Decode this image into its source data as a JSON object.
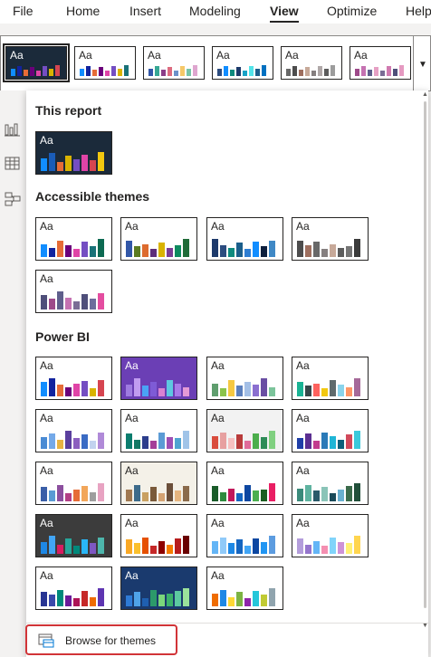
{
  "menubar": {
    "tabs": [
      {
        "label": "File",
        "active": false
      },
      {
        "label": "Home",
        "active": false
      },
      {
        "label": "Insert",
        "active": false
      },
      {
        "label": "Modeling",
        "active": false
      },
      {
        "label": "View",
        "active": true
      },
      {
        "label": "Optimize",
        "active": false
      },
      {
        "label": "Help",
        "active": false
      }
    ]
  },
  "thumb_text": "Aa",
  "ribbon_gallery": {
    "icon": "chevron-down-icon",
    "themes": [
      {
        "bg": "#1b2a3a",
        "text": "#ffffff",
        "selected": true,
        "bars": [
          "#118dff",
          "#12239e",
          "#e66c37",
          "#6b007b",
          "#e044a7",
          "#744ec2",
          "#d9b300",
          "#d64550"
        ]
      },
      {
        "bg": "#ffffff",
        "text": "#252423",
        "bars": [
          "#118dff",
          "#12239e",
          "#e66c37",
          "#6b007b",
          "#e044a7",
          "#744ec2",
          "#d9b300",
          "#197278"
        ]
      },
      {
        "bg": "#ffffff",
        "text": "#252423",
        "bars": [
          "#3257a8",
          "#37a794",
          "#8b3d88",
          "#dd6b7f",
          "#6b91c9",
          "#f5c869",
          "#77c4a8",
          "#dea6cf"
        ]
      },
      {
        "bg": "#ffffff",
        "text": "#252423",
        "bars": [
          "#2c4c7f",
          "#118dff",
          "#0e8a7e",
          "#1d3a6b",
          "#16a2c6",
          "#52e4e9",
          "#1b5e8b",
          "#0070c0"
        ]
      },
      {
        "bg": "#ffffff",
        "text": "#252423",
        "bars": [
          "#686868",
          "#4d4d4d",
          "#9e6f5f",
          "#c7a999",
          "#857f7f",
          "#b0a8a8",
          "#5c5c5c",
          "#9c9c9c"
        ]
      },
      {
        "bg": "#ffffff",
        "text": "#252423",
        "bars": [
          "#9e4a8a",
          "#c572b2",
          "#5f5f8c",
          "#e6a0c4",
          "#7a6d95",
          "#d07ab0",
          "#4f4f7a",
          "#e59ac1"
        ]
      }
    ]
  },
  "side_rail": {
    "icons": [
      "bar-chart-icon",
      "table-icon",
      "model-icon"
    ]
  },
  "panel": {
    "sections": [
      {
        "title": "This report",
        "themes": [
          {
            "bg": "#1b2a3a",
            "text": "#ffffff",
            "bars": [
              "#118dff",
              "#1a5cb8",
              "#e66c37",
              "#d9b300",
              "#744ec2",
              "#e044a7",
              "#d64550",
              "#f2c80f"
            ],
            "heights": [
              0.55,
              0.75,
              0.4,
              0.65,
              0.5,
              0.7,
              0.45,
              0.8
            ]
          }
        ]
      },
      {
        "title": "Accessible themes",
        "themes": [
          {
            "bg": "#ffffff",
            "text": "#252423",
            "bars": [
              "#118dff",
              "#12239e",
              "#e66c37",
              "#6b007b",
              "#e044a7",
              "#744ec2",
              "#197278",
              "#0d6a52"
            ],
            "heights": [
              0.55,
              0.4,
              0.7,
              0.5,
              0.35,
              0.65,
              0.45,
              0.75
            ]
          },
          {
            "bg": "#ffffff",
            "text": "#252423",
            "bars": [
              "#3257a8",
              "#5b7b22",
              "#dd6b2e",
              "#5e2e7a",
              "#d9b300",
              "#7a3d94",
              "#0e8a5f",
              "#1f6b38"
            ],
            "heights": [
              0.7,
              0.45,
              0.55,
              0.35,
              0.6,
              0.4,
              0.5,
              0.75
            ]
          },
          {
            "bg": "#ffffff",
            "text": "#252423",
            "bars": [
              "#1d3a6b",
              "#2c4c7f",
              "#0e8a7e",
              "#1b5e8b",
              "#2d7dd2",
              "#118dff",
              "#0d1f3d",
              "#3f88c5"
            ],
            "heights": [
              0.75,
              0.5,
              0.4,
              0.6,
              0.35,
              0.65,
              0.45,
              0.7
            ]
          },
          {
            "bg": "#ffffff",
            "text": "#252423",
            "bars": [
              "#4d4d4d",
              "#9e6f5f",
              "#686868",
              "#857f7f",
              "#c7a999",
              "#5c5c5c",
              "#757575",
              "#3b3b3b"
            ],
            "heights": [
              0.7,
              0.5,
              0.65,
              0.35,
              0.55,
              0.4,
              0.45,
              0.75
            ]
          },
          {
            "bg": "#ffffff",
            "text": "#252423",
            "bars": [
              "#4f4f7a",
              "#9e4a8a",
              "#5f5f8c",
              "#c572b2",
              "#7a6d95",
              "#4f4f7a",
              "#6d6d9c",
              "#e44da0"
            ],
            "heights": [
              0.6,
              0.45,
              0.75,
              0.5,
              0.35,
              0.65,
              0.45,
              0.7
            ]
          }
        ]
      },
      {
        "title": "Power BI",
        "themes": [
          {
            "bg": "#ffffff",
            "text": "#252423",
            "bars": [
              "#118dff",
              "#12239e",
              "#e66c37",
              "#6b007b",
              "#e044a7",
              "#744ec2",
              "#d9b300",
              "#d64550"
            ],
            "heights": [
              0.6,
              0.75,
              0.5,
              0.4,
              0.55,
              0.65,
              0.35,
              0.7
            ]
          },
          {
            "bg": "#6b3fb5",
            "text": "#ffffff",
            "bars": [
              "#9f7be0",
              "#c19cf0",
              "#4aa3f5",
              "#7e5bd6",
              "#d982d1",
              "#5ec7e0",
              "#a879e8",
              "#e49ad6"
            ],
            "heights": [
              0.5,
              0.75,
              0.45,
              0.6,
              0.35,
              0.7,
              0.55,
              0.4
            ]
          },
          {
            "bg": "#ffffff",
            "text": "#252423",
            "bars": [
              "#5f9e6e",
              "#8bc34a",
              "#f5c842",
              "#5b7fbd",
              "#a3bfe6",
              "#8a6fd0",
              "#6a4fa3",
              "#7cc49b"
            ],
            "heights": [
              0.55,
              0.35,
              0.7,
              0.45,
              0.6,
              0.5,
              0.75,
              0.4
            ]
          },
          {
            "bg": "#ffffff",
            "text": "#252423",
            "bars": [
              "#1ab394",
              "#374649",
              "#fd625e",
              "#f2c80f",
              "#5f6b6d",
              "#8ad4eb",
              "#fe9666",
              "#a66999"
            ],
            "heights": [
              0.6,
              0.45,
              0.55,
              0.35,
              0.7,
              0.5,
              0.4,
              0.75
            ]
          },
          {
            "bg": "#ffffff",
            "text": "#252423",
            "bars": [
              "#4a8bd4",
              "#74a9e8",
              "#e8b342",
              "#5a3f9e",
              "#8b5fbf",
              "#3a6bc4",
              "#c2d3ef",
              "#b08ad8"
            ],
            "heights": [
              0.5,
              0.65,
              0.4,
              0.75,
              0.45,
              0.6,
              0.35,
              0.7
            ]
          },
          {
            "bg": "#ffffff",
            "text": "#252423",
            "bars": [
              "#0b7d6e",
              "#117864",
              "#2c3e8c",
              "#a53e99",
              "#5b9bd5",
              "#9e4fb4",
              "#4fa3d1",
              "#a0c4e8"
            ],
            "heights": [
              0.65,
              0.4,
              0.55,
              0.35,
              0.7,
              0.5,
              0.45,
              0.75
            ]
          },
          {
            "bg": "#f2f2f2",
            "text": "#252423",
            "bars": [
              "#d94c3d",
              "#e7a0a0",
              "#f7c1c1",
              "#b83b3b",
              "#e06b9a",
              "#4cae4c",
              "#2e8b57",
              "#80d080"
            ],
            "heights": [
              0.55,
              0.7,
              0.45,
              0.6,
              0.35,
              0.65,
              0.5,
              0.75
            ]
          },
          {
            "bg": "#ffffff",
            "text": "#252423",
            "bars": [
              "#1f3fa8",
              "#5b2f91",
              "#c23c8e",
              "#2a7ab8",
              "#1fb5d6",
              "#0d5f7a",
              "#d1495b",
              "#3bc9db"
            ],
            "heights": [
              0.45,
              0.65,
              0.35,
              0.7,
              0.55,
              0.4,
              0.6,
              0.75
            ]
          },
          {
            "bg": "#ffffff",
            "text": "#252423",
            "bars": [
              "#3b5fa8",
              "#5a9bd4",
              "#8c4f9e",
              "#b33f85",
              "#e66c37",
              "#f2a65a",
              "#9e9e9e",
              "#e8a3c2"
            ],
            "heights": [
              0.6,
              0.45,
              0.7,
              0.35,
              0.5,
              0.65,
              0.4,
              0.75
            ]
          },
          {
            "bg": "#f4f1e8",
            "text": "#252423",
            "bars": [
              "#a07850",
              "#3d6b8a",
              "#c9a060",
              "#7a5a3a",
              "#d4a373",
              "#6b4f3a",
              "#e6b57f",
              "#8a6a4a"
            ],
            "heights": [
              0.5,
              0.7,
              0.4,
              0.6,
              0.35,
              0.75,
              0.45,
              0.65
            ]
          },
          {
            "bg": "#ffffff",
            "text": "#252423",
            "bars": [
              "#1a5c2a",
              "#2e8b3e",
              "#c2185b",
              "#1565c0",
              "#0d47a1",
              "#4caf50",
              "#1b5e20",
              "#e91e63"
            ],
            "heights": [
              0.65,
              0.4,
              0.55,
              0.35,
              0.7,
              0.45,
              0.5,
              0.75
            ]
          },
          {
            "bg": "#ffffff",
            "text": "#252423",
            "bars": [
              "#3a8a7a",
              "#5fb3a0",
              "#2a5a6a",
              "#8ac4b8",
              "#1a4a5a",
              "#6ab0d0",
              "#3b6b4b",
              "#214f3a"
            ],
            "heights": [
              0.55,
              0.7,
              0.45,
              0.6,
              0.35,
              0.5,
              0.65,
              0.75
            ]
          },
          {
            "bg": "#3c3c3c",
            "text": "#ffffff",
            "bars": [
              "#1e88e5",
              "#42a5f5",
              "#d81b60",
              "#26a69a",
              "#00897b",
              "#29b6f6",
              "#7e57c2",
              "#4db6ac"
            ],
            "heights": [
              0.5,
              0.75,
              0.4,
              0.65,
              0.35,
              0.6,
              0.45,
              0.7
            ]
          },
          {
            "bg": "#ffffff",
            "text": "#252423",
            "bars": [
              "#f9a825",
              "#fbc02d",
              "#e65100",
              "#c62828",
              "#8e0000",
              "#f57c00",
              "#b71c1c",
              "#6a0000"
            ],
            "heights": [
              0.6,
              0.45,
              0.7,
              0.35,
              0.55,
              0.4,
              0.65,
              0.75
            ]
          },
          {
            "bg": "#ffffff",
            "text": "#252423",
            "bars": [
              "#64b5f6",
              "#90caf9",
              "#1e88e5",
              "#1565c0",
              "#42a5f5",
              "#0d47a1",
              "#2196f3",
              "#5c9ce0"
            ],
            "heights": [
              0.55,
              0.7,
              0.45,
              0.6,
              0.35,
              0.65,
              0.5,
              0.75
            ]
          },
          {
            "bg": "#ffffff",
            "text": "#252423",
            "bars": [
              "#b39ddb",
              "#9575cd",
              "#64b5f6",
              "#f48fb1",
              "#81d4fa",
              "#ce93d8",
              "#fff176",
              "#ffd54f"
            ],
            "heights": [
              0.65,
              0.4,
              0.55,
              0.35,
              0.7,
              0.5,
              0.45,
              0.75
            ]
          },
          {
            "bg": "#ffffff",
            "text": "#252423",
            "bars": [
              "#283593",
              "#3949ab",
              "#00897b",
              "#6a1b9a",
              "#ad1457",
              "#c62828",
              "#ef6c00",
              "#5e35b1"
            ],
            "heights": [
              0.6,
              0.5,
              0.7,
              0.45,
              0.35,
              0.65,
              0.4,
              0.75
            ]
          },
          {
            "bg": "#1a3a6e",
            "text": "#ffffff",
            "bars": [
              "#2e7bd6",
              "#4fa3e8",
              "#1f5fb0",
              "#2c9a6a",
              "#7bd67b",
              "#3bb06a",
              "#5cc9a0",
              "#9be39b"
            ],
            "heights": [
              0.45,
              0.6,
              0.35,
              0.7,
              0.5,
              0.55,
              0.65,
              0.75
            ]
          },
          {
            "bg": "#ffffff",
            "text": "#252423",
            "bars": [
              "#ef6c00",
              "#1e88e5",
              "#fdd835",
              "#7cb342",
              "#8e24aa",
              "#26c6da",
              "#c0ca33",
              "#90a4ae"
            ],
            "heights": [
              0.55,
              0.7,
              0.4,
              0.6,
              0.35,
              0.65,
              0.5,
              0.75
            ]
          }
        ]
      }
    ],
    "browse_button": {
      "label": "Browse for themes",
      "icon": "browse-themes-icon",
      "highlight": "#d13438"
    }
  }
}
